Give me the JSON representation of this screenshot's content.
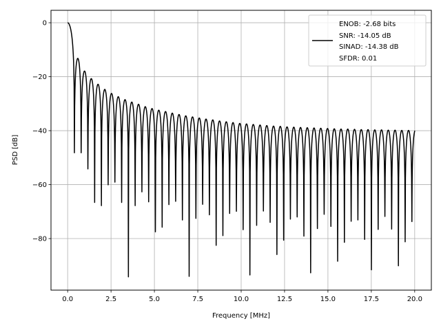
{
  "chart_data": {
    "type": "line",
    "title": "",
    "xlabel": "Frequency [MHz]",
    "ylabel": "PSD [dB]",
    "xlim": [
      -0.96,
      20.96
    ],
    "ylim": [
      -99.1,
      4.6
    ],
    "grid": true,
    "legend_placement": "top-right",
    "line_color": "#000000",
    "grid_color": "#b0b0b0",
    "xticks": [
      0.0,
      2.5,
      5.0,
      7.5,
      10.0,
      12.5,
      15.0,
      17.5,
      20.0
    ],
    "xtick_labels": [
      "0.0",
      "2.5",
      "5.0",
      "7.5",
      "10.0",
      "12.5",
      "15.0",
      "17.5",
      "20.0"
    ],
    "yticks": [
      0,
      -20,
      -40,
      -60,
      -80
    ],
    "ytick_labels": [
      "0",
      "−20",
      "−40",
      "−60",
      "−80"
    ],
    "series": [
      {
        "name": "ENOB: -2.68 bits\nSNR: -14.05 dB\nSINAD: -14.38 dB\nSFDR: 0.01",
        "legend_lines": [
          "ENOB: -2.68 bits",
          "SNR: -14.05 dB",
          "SINAD: -14.38 dB",
          "SFDR: 0.01"
        ],
        "start": {
          "x": 0.0,
          "y": 0.0
        },
        "end": {
          "x": 20.0,
          "y": -40.0
        },
        "null_spacing_mhz": 0.389,
        "null_depths_db": [
          -48.2,
          -48.2,
          -54.2,
          -66.6,
          -67.8,
          -60.1,
          -59.1,
          -66.6,
          -94.2,
          -67.8,
          -62.7,
          -66.4,
          -77.5,
          -75.8,
          -67.4,
          -66.2,
          -73.1,
          -94.0,
          -72.5,
          -67.3,
          -71.2,
          -82.5,
          -78.9,
          -70.7,
          -69.9,
          -76.7,
          -93.5,
          -75.1,
          -69.8,
          -74.0,
          -85.9,
          -80.6,
          -72.8,
          -72.0,
          -79.1,
          -92.7,
          -76.3,
          -71.0,
          -75.5,
          -88.4,
          -81.4,
          -73.6,
          -73.1,
          -80.3,
          -91.6,
          -76.6,
          -71.8,
          -76.5,
          -90.1,
          -81.2,
          -73.7
        ],
        "sidelobe_peaks_db": [
          -13.2,
          -17.9,
          -20.7,
          -22.8,
          -24.7,
          -26.2,
          -27.4,
          -28.5,
          -29.4,
          -30.2,
          -31.1,
          -31.8,
          -32.4,
          -32.9,
          -33.5,
          -34.0,
          -34.5,
          -34.9,
          -35.3,
          -35.7,
          -36.0,
          -36.4,
          -36.7,
          -37.0,
          -37.3,
          -37.5,
          -37.7,
          -37.9,
          -38.1,
          -38.3,
          -38.4,
          -38.6,
          -38.7,
          -38.8,
          -38.9,
          -39.0,
          -39.1,
          -39.2,
          -39.3,
          -39.4,
          -39.4,
          -39.5,
          -39.6,
          -39.6,
          -39.7,
          -39.7,
          -39.8,
          -39.8,
          -39.9,
          -39.9
        ]
      }
    ]
  }
}
